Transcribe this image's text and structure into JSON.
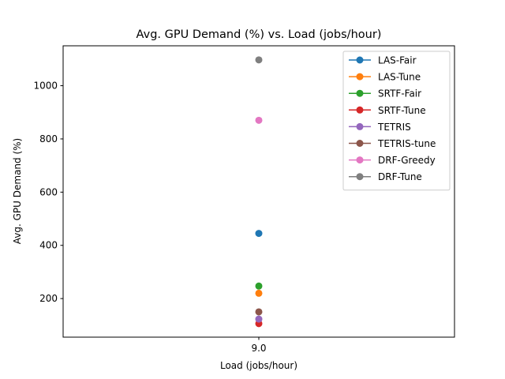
{
  "chart_data": {
    "type": "line",
    "title": "Avg. GPU Demand (%) vs. Load (jobs/hour)",
    "xlabel": "Load (jobs/hour)",
    "ylabel": "Avg. GPU Demand (%)",
    "x": [
      9.0
    ],
    "x_tick_labels": [
      "9.0"
    ],
    "y_ticks": [
      200,
      400,
      600,
      800,
      1000
    ],
    "ylim": [
      55,
      1150
    ],
    "legend_position": "top-right",
    "grid": false,
    "series": [
      {
        "name": "LAS-Fair",
        "values": [
          445
        ],
        "color": "#1f77b4"
      },
      {
        "name": "LAS-Tune",
        "values": [
          220
        ],
        "color": "#ff7f0e"
      },
      {
        "name": "SRTF-Fair",
        "values": [
          247
        ],
        "color": "#2ca02c"
      },
      {
        "name": "SRTF-Tune",
        "values": [
          106
        ],
        "color": "#d62728"
      },
      {
        "name": "TETRIS",
        "values": [
          123
        ],
        "color": "#9467bd"
      },
      {
        "name": "TETRIS-tune",
        "values": [
          150
        ],
        "color": "#8c564b"
      },
      {
        "name": "DRF-Greedy",
        "values": [
          870
        ],
        "color": "#e377c2"
      },
      {
        "name": "DRF-Tune",
        "values": [
          1097
        ],
        "color": "#7f7f7f"
      }
    ]
  }
}
